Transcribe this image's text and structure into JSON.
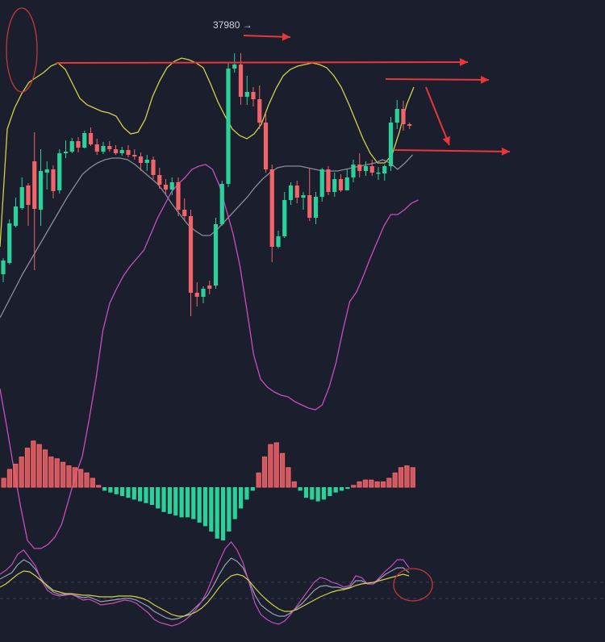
{
  "chart_data": {
    "type": "candlestick",
    "annotations": {
      "high_price_label": "37980 →"
    },
    "colors": {
      "background": "#1b1e2c",
      "up": "#2bd19a",
      "down": "#f0646a",
      "boll_upper": "#d2d24a",
      "boll_lower": "#c84fbe",
      "boll_mid": "#8a8d99",
      "annotation": "#e8363a",
      "kdj_k": "#c84fbe",
      "kdj_d": "#d2d24a",
      "kdj_j": "#9aa0b8"
    },
    "candles": [
      {
        "o": -10,
        "h": 10,
        "l": -20,
        "c": 7,
        "up": true
      },
      {
        "o": 4,
        "h": 58,
        "l": 2,
        "c": 53,
        "up": true
      },
      {
        "o": 50,
        "h": 85,
        "l": 48,
        "c": 74,
        "up": true
      },
      {
        "o": 72,
        "h": 110,
        "l": 70,
        "c": 98,
        "up": true
      },
      {
        "o": 100,
        "h": 103,
        "l": 50,
        "c": 76,
        "up": false
      },
      {
        "o": 130,
        "h": 166,
        "l": -5,
        "c": 71,
        "up": false
      },
      {
        "o": 70,
        "h": 145,
        "l": 50,
        "c": 118,
        "up": true
      },
      {
        "o": 116,
        "h": 130,
        "l": 95,
        "c": 120,
        "up": true
      },
      {
        "o": 120,
        "h": 125,
        "l": 84,
        "c": 93,
        "up": false
      },
      {
        "o": 94,
        "h": 145,
        "l": 90,
        "c": 140,
        "up": true
      },
      {
        "o": 140,
        "h": 156,
        "l": 134,
        "c": 142,
        "up": true
      },
      {
        "o": 142,
        "h": 159,
        "l": 140,
        "c": 155,
        "up": true
      },
      {
        "o": 155,
        "h": 160,
        "l": 141,
        "c": 147,
        "up": false
      },
      {
        "o": 147,
        "h": 168,
        "l": 146,
        "c": 165,
        "up": true
      },
      {
        "o": 165,
        "h": 172,
        "l": 149,
        "c": 151,
        "up": false
      },
      {
        "o": 151,
        "h": 158,
        "l": 138,
        "c": 142,
        "up": false
      },
      {
        "o": 142,
        "h": 154,
        "l": 139,
        "c": 149,
        "up": true
      },
      {
        "o": 149,
        "h": 155,
        "l": 142,
        "c": 145,
        "up": false
      },
      {
        "o": 145,
        "h": 150,
        "l": 138,
        "c": 140,
        "up": false
      },
      {
        "o": 140,
        "h": 148,
        "l": 137,
        "c": 144,
        "up": true
      },
      {
        "o": 144,
        "h": 150,
        "l": 135,
        "c": 138,
        "up": false
      },
      {
        "o": 138,
        "h": 145,
        "l": 132,
        "c": 136,
        "up": false
      },
      {
        "o": 136,
        "h": 141,
        "l": 118,
        "c": 128,
        "up": false
      },
      {
        "o": 128,
        "h": 138,
        "l": 118,
        "c": 132,
        "up": true
      },
      {
        "o": 132,
        "h": 136,
        "l": 108,
        "c": 113,
        "up": false
      },
      {
        "o": 113,
        "h": 122,
        "l": 96,
        "c": 101,
        "up": false
      },
      {
        "o": 101,
        "h": 108,
        "l": 90,
        "c": 95,
        "up": false
      },
      {
        "o": 95,
        "h": 110,
        "l": 88,
        "c": 104,
        "up": true
      },
      {
        "o": 104,
        "h": 110,
        "l": 62,
        "c": 70,
        "up": false
      },
      {
        "o": 70,
        "h": 84,
        "l": 56,
        "c": 62,
        "up": false
      },
      {
        "o": 62,
        "h": 70,
        "l": -62,
        "c": -33,
        "up": false
      },
      {
        "o": -33,
        "h": -20,
        "l": -50,
        "c": -38,
        "up": false
      },
      {
        "o": -38,
        "h": -25,
        "l": -46,
        "c": -28,
        "up": true
      },
      {
        "o": -28,
        "h": -18,
        "l": -35,
        "c": -24,
        "up": false
      },
      {
        "o": -24,
        "h": 60,
        "l": -28,
        "c": 52,
        "up": true
      },
      {
        "o": 52,
        "h": 106,
        "l": 50,
        "c": 102,
        "up": true
      },
      {
        "o": 102,
        "h": 252,
        "l": 98,
        "c": 245,
        "up": true
      },
      {
        "o": 245,
        "h": 264,
        "l": 240,
        "c": 250,
        "up": true
      },
      {
        "o": 250,
        "h": 264,
        "l": 200,
        "c": 210,
        "up": false
      },
      {
        "o": 210,
        "h": 236,
        "l": 200,
        "c": 216,
        "up": true
      },
      {
        "o": 216,
        "h": 222,
        "l": 198,
        "c": 207,
        "up": false
      },
      {
        "o": 207,
        "h": 224,
        "l": 170,
        "c": 178,
        "up": false
      },
      {
        "o": 178,
        "h": 190,
        "l": 116,
        "c": 120,
        "up": false
      },
      {
        "o": 120,
        "h": 126,
        "l": 5,
        "c": 24,
        "up": false
      },
      {
        "o": 24,
        "h": 44,
        "l": 22,
        "c": 37,
        "up": true
      },
      {
        "o": 37,
        "h": 92,
        "l": 35,
        "c": 82,
        "up": true
      },
      {
        "o": 82,
        "h": 104,
        "l": 76,
        "c": 100,
        "up": true
      },
      {
        "o": 100,
        "h": 106,
        "l": 78,
        "c": 85,
        "up": false
      },
      {
        "o": 85,
        "h": 92,
        "l": 70,
        "c": 88,
        "up": true
      },
      {
        "o": 88,
        "h": 122,
        "l": 56,
        "c": 60,
        "up": false
      },
      {
        "o": 60,
        "h": 92,
        "l": 52,
        "c": 86,
        "up": true
      },
      {
        "o": 86,
        "h": 122,
        "l": 80,
        "c": 120,
        "up": true
      },
      {
        "o": 120,
        "h": 124,
        "l": 88,
        "c": 92,
        "up": false
      },
      {
        "o": 92,
        "h": 116,
        "l": 86,
        "c": 108,
        "up": true
      },
      {
        "o": 108,
        "h": 114,
        "l": 92,
        "c": 94,
        "up": false
      },
      {
        "o": 94,
        "h": 120,
        "l": 94,
        "c": 110,
        "up": true
      },
      {
        "o": 110,
        "h": 132,
        "l": 104,
        "c": 126,
        "up": true
      },
      {
        "o": 126,
        "h": 140,
        "l": 110,
        "c": 118,
        "up": false
      },
      {
        "o": 118,
        "h": 130,
        "l": 112,
        "c": 124,
        "up": true
      },
      {
        "o": 124,
        "h": 132,
        "l": 112,
        "c": 116,
        "up": false
      },
      {
        "o": 116,
        "h": 123,
        "l": 107,
        "c": 115,
        "up": true
      },
      {
        "o": 115,
        "h": 126,
        "l": 106,
        "c": 124,
        "up": true
      },
      {
        "o": 124,
        "h": 185,
        "l": 118,
        "c": 178,
        "up": true
      },
      {
        "o": 178,
        "h": 206,
        "l": 170,
        "c": 195,
        "up": true
      },
      {
        "o": 195,
        "h": 205,
        "l": 168,
        "c": 176,
        "up": false
      },
      {
        "o": 176,
        "h": 178,
        "l": 170,
        "c": 174,
        "up": false
      }
    ],
    "boll_upper": [
      24,
      170,
      196,
      214,
      228,
      234,
      240,
      248,
      252,
      244,
      226,
      208,
      200,
      196,
      192,
      190,
      186,
      172,
      164,
      166,
      182,
      210,
      230,
      246,
      254,
      258,
      256,
      252,
      246,
      226,
      204,
      186,
      170,
      162,
      158,
      164,
      176,
      200,
      220,
      236,
      244,
      248,
      250,
      252,
      250,
      246,
      236,
      222,
      202,
      180,
      158,
      140,
      128,
      128,
      138,
      166,
      200,
      222
    ],
    "boll_mid": [
      -64,
      -46,
      -28,
      -10,
      6,
      22,
      38,
      54,
      70,
      86,
      100,
      114,
      122,
      128,
      132,
      134,
      134,
      132,
      126,
      118,
      110,
      102,
      90,
      76,
      64,
      52,
      44,
      38,
      38,
      46,
      56,
      66,
      76,
      86,
      98,
      108,
      116,
      122,
      124,
      124,
      124,
      122,
      120,
      118,
      118,
      118,
      120,
      122,
      124,
      126,
      128,
      132,
      128,
      120,
      128,
      138
    ],
    "boll_lower": [
      -152,
      -200,
      -250,
      -298,
      -340,
      -350,
      -350,
      -345,
      -336,
      -320,
      -290,
      -260,
      -236,
      -190,
      -140,
      -80,
      -46,
      -28,
      -12,
      0,
      10,
      20,
      40,
      60,
      76,
      92,
      102,
      110,
      120,
      124,
      126,
      120,
      100,
      70,
      40,
      0,
      -54,
      -110,
      -140,
      -150,
      -156,
      -160,
      -162,
      -168,
      -172,
      -176,
      -178,
      -172,
      -150,
      -120,
      -80,
      -44,
      -32,
      -12,
      10,
      30,
      50,
      64,
      64,
      70,
      78,
      82
    ],
    "macd_hist": [
      10,
      20,
      26,
      34,
      44,
      52,
      48,
      42,
      34,
      32,
      28,
      24,
      22,
      20,
      16,
      10,
      2,
      -4,
      -6,
      -8,
      -10,
      -12,
      -14,
      -16,
      -18,
      -20,
      -24,
      -28,
      -30,
      -32,
      -34,
      -34,
      -36,
      -40,
      -44,
      -50,
      -58,
      -60,
      -50,
      -36,
      -24,
      -14,
      -4,
      16,
      34,
      48,
      50,
      38,
      22,
      6,
      -4,
      -12,
      -14,
      -16,
      -14,
      -10,
      -6,
      -4,
      -2,
      2,
      6,
      8,
      8,
      6,
      6,
      10,
      16,
      22,
      24,
      22
    ],
    "kdj_k": [
      30,
      35,
      42,
      55,
      60,
      50,
      40,
      22,
      10,
      5,
      3,
      4,
      5,
      2,
      -2,
      -1,
      -4,
      -8,
      -7,
      -6,
      -4,
      -2,
      -3,
      -6,
      -12,
      -18,
      -26,
      -30,
      -32,
      -34,
      -32,
      -28,
      -22,
      -14,
      -4,
      10,
      28,
      46,
      62,
      70,
      60,
      44,
      20,
      -6,
      -20,
      -26,
      -30,
      -32,
      -28,
      -20,
      -10,
      0,
      10,
      20,
      26,
      24,
      20,
      18,
      14,
      16,
      28,
      26,
      18,
      18,
      26,
      34,
      40,
      48,
      48,
      38
    ],
    "kdj_d": [
      14,
      18,
      24,
      30,
      34,
      33,
      28,
      22,
      16,
      10,
      8,
      6,
      6,
      5,
      4,
      4,
      3,
      2,
      2,
      2,
      3,
      3,
      3,
      2,
      0,
      -3,
      -8,
      -12,
      -16,
      -20,
      -22,
      -22,
      -20,
      -17,
      -12,
      -5,
      4,
      14,
      22,
      28,
      30,
      28,
      22,
      13,
      5,
      -2,
      -8,
      -13,
      -16,
      -16,
      -14,
      -10,
      -6,
      -2,
      2,
      5,
      8,
      10,
      11,
      13,
      16,
      18,
      19,
      20,
      22,
      24,
      26,
      28,
      30,
      28
    ],
    "kdj_j": [
      24,
      28,
      32,
      42,
      48,
      44,
      36,
      24,
      14,
      8,
      5,
      5,
      5,
      3,
      1,
      2,
      -1,
      -4,
      -3,
      -2,
      -1,
      0,
      0,
      -2,
      -6,
      -10,
      -16,
      -20,
      -24,
      -26,
      -25,
      -22,
      -18,
      -11,
      -4,
      4,
      16,
      30,
      42,
      50,
      46,
      38,
      22,
      4,
      -8,
      -14,
      -19,
      -22,
      -22,
      -18,
      -12,
      -6,
      2,
      10,
      15,
      16,
      14,
      14,
      12,
      14,
      22,
      22,
      18,
      18,
      24,
      30,
      34,
      38,
      38,
      32
    ]
  }
}
